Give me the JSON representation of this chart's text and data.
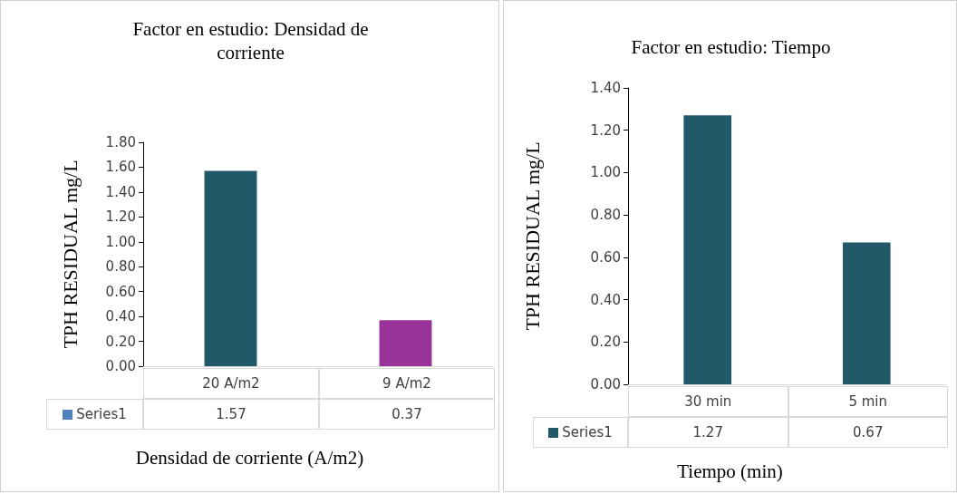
{
  "chart_data": [
    {
      "type": "bar",
      "title": "Factor en estudio: Densidad de corriente",
      "xlabel": "Densidad de corriente (A/m2)",
      "ylabel": "TPH RESIDUAL mg/L",
      "categories": [
        "20 A/m2",
        "9 A/m2"
      ],
      "series": [
        {
          "name": "Series1",
          "color": "#4f81bd",
          "colors": [
            "#215968",
            "#993399"
          ],
          "values": [
            1.57,
            0.37
          ]
        }
      ],
      "ylim": [
        0,
        1.8
      ],
      "yticks": [
        {
          "value": 0,
          "label": "0.00"
        },
        {
          "value": 0.2,
          "label": "0.20"
        },
        {
          "value": 0.4,
          "label": "0.40"
        },
        {
          "value": 0.6,
          "label": "0.60"
        },
        {
          "value": 0.8,
          "label": "0.80"
        },
        {
          "value": 1.0,
          "label": "1.00"
        },
        {
          "value": 1.2,
          "label": "1.20"
        },
        {
          "value": 1.4,
          "label": "1.40"
        },
        {
          "value": 1.6,
          "label": "1.60"
        },
        {
          "value": 1.8,
          "label": "1.80"
        }
      ],
      "grid": false,
      "legend": "bottom left",
      "data_labels": true
    },
    {
      "type": "bar",
      "title": "Factor en estudio: Tiempo",
      "xlabel": "Tiempo (min)",
      "ylabel": "TPH RESIDUAL mg/L",
      "categories": [
        "30 min",
        "5 min"
      ],
      "series": [
        {
          "name": "Series1",
          "color": "#215968",
          "colors": [
            "#215968",
            "#215968"
          ],
          "values": [
            1.27,
            0.67
          ]
        }
      ],
      "ylim": [
        0,
        1.4
      ],
      "yticks": [
        {
          "value": 0,
          "label": "0.00"
        },
        {
          "value": 0.2,
          "label": "0.20"
        },
        {
          "value": 0.4,
          "label": "0.40"
        },
        {
          "value": 0.6,
          "label": "0.60"
        },
        {
          "value": 0.8,
          "label": "0.80"
        },
        {
          "value": 1.0,
          "label": "1.00"
        },
        {
          "value": 1.2,
          "label": "1.20"
        },
        {
          "value": 1.4,
          "label": "1.40"
        }
      ],
      "grid": false,
      "legend": "bottom left",
      "data_labels": true
    }
  ]
}
